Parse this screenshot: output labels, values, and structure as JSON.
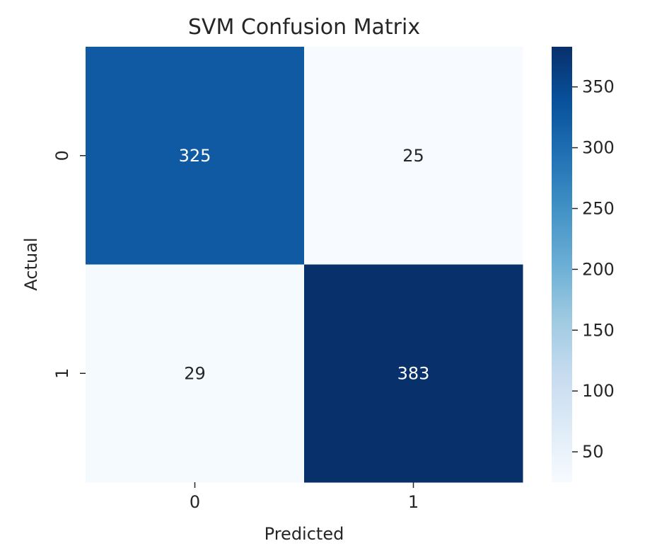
{
  "chart_data": {
    "type": "heatmap",
    "title": "SVM Confusion Matrix",
    "xlabel": "Predicted",
    "ylabel": "Actual",
    "x_categories": [
      "0",
      "1"
    ],
    "y_categories": [
      "0",
      "1"
    ],
    "values": [
      [
        325,
        25
      ],
      [
        29,
        383
      ]
    ],
    "colormap": "Blues",
    "value_range": [
      25,
      383
    ],
    "colorbar_ticks": [
      50,
      100,
      150,
      200,
      250,
      300,
      350
    ],
    "colorbar_tick_labels": [
      "50",
      "100",
      "150",
      "200",
      "250",
      "300",
      "350"
    ],
    "annotation_colors": {
      "dark_cell": "#ffffff",
      "light_cell": "#262626"
    },
    "grid": false,
    "legend": "colorbar-right"
  }
}
